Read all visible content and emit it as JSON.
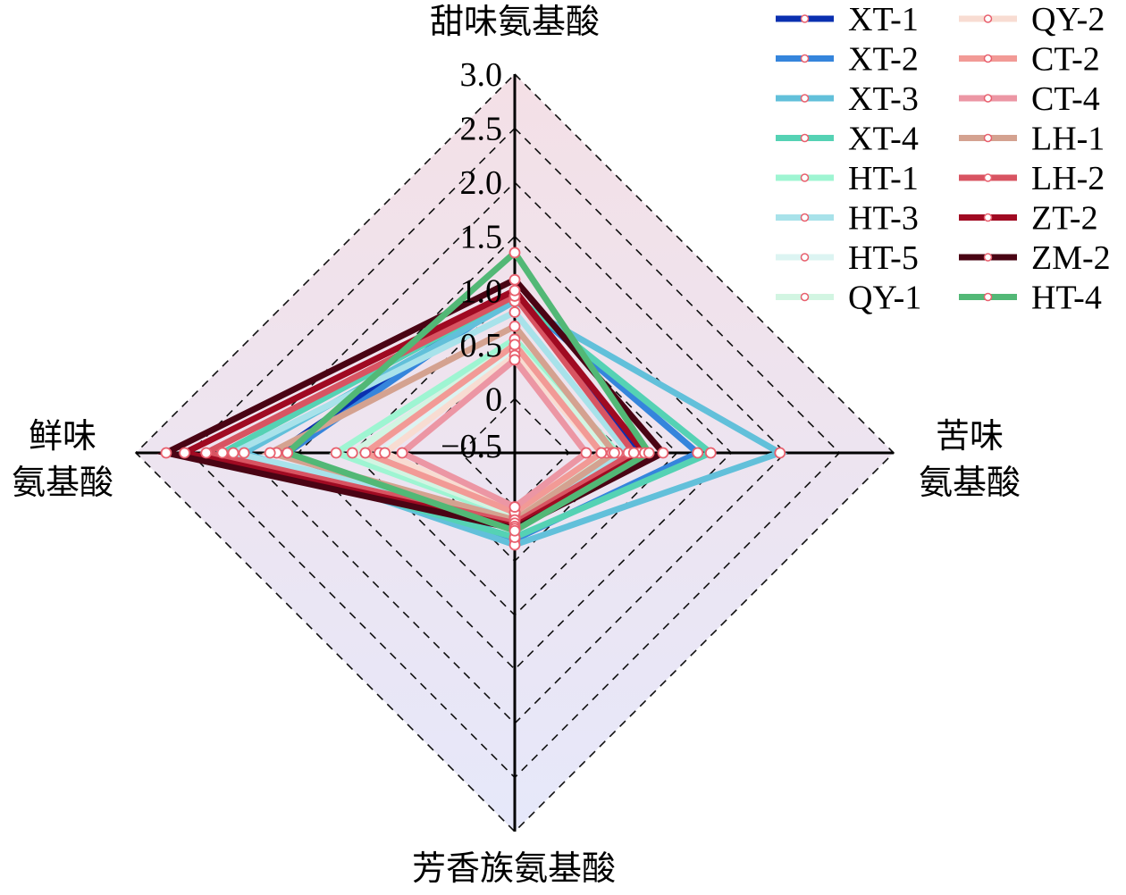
{
  "chart_data": {
    "type": "radar",
    "axes": [
      "甜味氨基酸",
      "苦味氨基酸",
      "芳香族氨基酸",
      "鲜味氨基酸"
    ],
    "axis_label_lines": {
      "sweet": "甜味氨基酸",
      "bitter_1": "苦味",
      "bitter_2": "氨基酸",
      "aromatic": "芳香族氨基酸",
      "umami_1": "鲜味",
      "umami_2": "氨基酸"
    },
    "rlim": [
      -0.5,
      3.0
    ],
    "ticks": [
      "3.0",
      "2.5",
      "2.0",
      "1.5",
      "1.0",
      "0.5",
      "0",
      "−0.5"
    ],
    "tick_values": [
      3.0,
      2.5,
      2.0,
      1.5,
      1.0,
      0.5,
      0,
      -0.5
    ],
    "grid": "dashed",
    "legend_position": "top-right",
    "marker_color": "#e8606e",
    "series": [
      {
        "name": "XT-1",
        "color": "#0a30b0",
        "values": [
          1.0,
          0.65,
          0.2,
          1.7
        ]
      },
      {
        "name": "XT-2",
        "color": "#3585dc",
        "values": [
          0.95,
          1.19,
          0.3,
          1.6
        ]
      },
      {
        "name": "XT-3",
        "color": "#62c0da",
        "values": [
          0.9,
          1.95,
          0.35,
          2.0
        ]
      },
      {
        "name": "XT-4",
        "color": "#55d2b4",
        "values": [
          0.95,
          1.31,
          0.28,
          2.2
        ]
      },
      {
        "name": "HT-1",
        "color": "#9ef5d2",
        "values": [
          0.55,
          0.45,
          0.1,
          1.15
        ]
      },
      {
        "name": "HT-3",
        "color": "#a8e2ea",
        "values": [
          0.8,
          0.55,
          0.1,
          2.1
        ]
      },
      {
        "name": "HT-5",
        "color": "#dcf4f2",
        "values": [
          0.45,
          0.35,
          0.05,
          0.75
        ]
      },
      {
        "name": "QY-1",
        "color": "#d2f5e2",
        "values": [
          0.5,
          0.4,
          0.08,
          1.0
        ]
      },
      {
        "name": "QY-2",
        "color": "#f8dcd2",
        "values": [
          0.4,
          0.3,
          0.05,
          0.7
        ]
      },
      {
        "name": "CT-2",
        "color": "#f29a96",
        "values": [
          0.5,
          0.3,
          0.05,
          0.88
        ]
      },
      {
        "name": "CT-4",
        "color": "#ec96a4",
        "values": [
          0.36,
          0.16,
          0.0,
          0.54
        ]
      },
      {
        "name": "LH-1",
        "color": "#d4a290",
        "values": [
          0.67,
          0.42,
          0.12,
          1.76
        ]
      },
      {
        "name": "LH-2",
        "color": "#d85462",
        "values": [
          0.95,
          0.6,
          0.15,
          2.35
        ]
      },
      {
        "name": "ZT-2",
        "color": "#a00a22",
        "values": [
          1.0,
          0.7,
          0.18,
          2.55
        ]
      },
      {
        "name": "ZM-2",
        "color": "#4a0414",
        "values": [
          1.1,
          0.87,
          0.2,
          2.72
        ]
      },
      {
        "name": "HT-4",
        "color": "#52b876",
        "values": [
          1.35,
          0.74,
          0.22,
          1.6
        ]
      }
    ]
  }
}
